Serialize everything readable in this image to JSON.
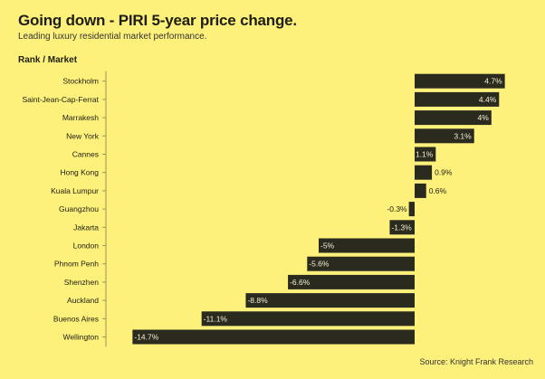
{
  "title": "Going down - PIRI 5-year price change.",
  "subtitle": "Leading luxury residential market performance.",
  "source": "Source: Knight Frank Research",
  "colors": {
    "background": "#fdf07b",
    "bar": "#2b2a1f",
    "label_inside": "#f5f0d0"
  },
  "chart_data": {
    "type": "bar",
    "orientation": "horizontal",
    "title": "Going down - PIRI 5-year price change.",
    "ylabel": "Rank / Market",
    "xlabel": "",
    "xlim": [
      -14.7,
      4.7
    ],
    "grid": false,
    "categories": [
      "Stockholm",
      "Saint-Jean-Cap-Ferrat",
      "Marrakesh",
      "New York",
      "Cannes",
      "Hong Kong",
      "Kuala Lumpur",
      "Guangzhou",
      "Jakarta",
      "London",
      "Phnom Penh",
      "Shenzhen",
      "Auckland",
      "Buenos Aires",
      "Wellington"
    ],
    "values": [
      4.7,
      4.4,
      4,
      3.1,
      1.1,
      0.9,
      0.6,
      -0.3,
      -1.3,
      -5,
      -5.6,
      -6.6,
      -8.8,
      -11.1,
      -14.7
    ],
    "data_labels": [
      "4.7%",
      "4.4%",
      "4%",
      "3.1%",
      "1.1%",
      "0.9%",
      "0.6%",
      "-0.3%",
      "-1.3%",
      "-5%",
      "-5.6%",
      "-6.6%",
      "-8.8%",
      "-11.1%",
      "-14.7%"
    ]
  }
}
